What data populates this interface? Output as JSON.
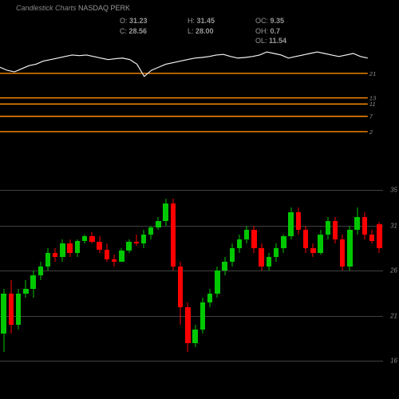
{
  "header": {
    "title_prefix": "Candlestick Charts",
    "symbol": "NASDAQ PERK",
    "stats": {
      "O": "31.23",
      "H": "31.45",
      "OC": "9.35",
      "C": "28.56",
      "L": "28.00",
      "OH": "0.7",
      "OL": "11.54"
    }
  },
  "colors": {
    "bg": "#000000",
    "orange_line": "#ff8c00",
    "indicator_line": "#f5f5f5",
    "grid_line": "#404040",
    "up_candle": "#00c800",
    "down_candle": "#ff0000",
    "text": "#999999"
  },
  "indicator_panel": {
    "ylim": [
      0,
      30
    ],
    "orange_levels": [
      21,
      13,
      11,
      7,
      2
    ],
    "line_data": [
      23,
      22,
      21.5,
      22.5,
      23.5,
      24,
      25,
      25.5,
      26,
      26.5,
      27,
      26.8,
      27,
      26.5,
      26,
      25.5,
      25.8,
      26,
      25.5,
      24,
      20,
      22,
      23,
      24,
      24.5,
      25,
      25.5,
      26,
      26.2,
      26.5,
      27,
      27.2,
      26.5,
      26,
      26.2,
      26.5,
      27,
      28,
      27.5,
      27,
      26,
      26.5,
      27,
      27.5,
      28,
      27.5,
      27,
      26.5,
      27,
      27.5,
      26.5,
      26
    ]
  },
  "price_panel": {
    "ylim": [
      14,
      37
    ],
    "grid_levels": [
      35,
      31,
      26,
      21,
      16
    ],
    "candles": [
      {
        "o": 19,
        "h": 24,
        "l": 17,
        "c": 23.5
      },
      {
        "o": 23.5,
        "h": 25,
        "l": 19,
        "c": 20
      },
      {
        "o": 20,
        "h": 24,
        "l": 19.5,
        "c": 23.5
      },
      {
        "o": 23.5,
        "h": 25,
        "l": 23,
        "c": 24
      },
      {
        "o": 24,
        "h": 26,
        "l": 23,
        "c": 25.5
      },
      {
        "o": 25.5,
        "h": 27,
        "l": 25,
        "c": 26.5
      },
      {
        "o": 26.5,
        "h": 28.5,
        "l": 26,
        "c": 28
      },
      {
        "o": 28,
        "h": 28.5,
        "l": 27,
        "c": 27.5
      },
      {
        "o": 27.5,
        "h": 29.5,
        "l": 27,
        "c": 29
      },
      {
        "o": 29,
        "h": 29.5,
        "l": 27.5,
        "c": 28
      },
      {
        "o": 28,
        "h": 29.5,
        "l": 27.5,
        "c": 29.3
      },
      {
        "o": 29.3,
        "h": 30,
        "l": 29,
        "c": 29.8
      },
      {
        "o": 29.8,
        "h": 30.3,
        "l": 29,
        "c": 29.2
      },
      {
        "o": 29.2,
        "h": 29.8,
        "l": 28,
        "c": 28.3
      },
      {
        "o": 28.3,
        "h": 29,
        "l": 27,
        "c": 27.3
      },
      {
        "o": 27.3,
        "h": 27.8,
        "l": 26.5,
        "c": 27
      },
      {
        "o": 27,
        "h": 28.5,
        "l": 27,
        "c": 28.2
      },
      {
        "o": 28.2,
        "h": 29.5,
        "l": 28,
        "c": 29.2
      },
      {
        "o": 29.2,
        "h": 30,
        "l": 28.8,
        "c": 29
      },
      {
        "o": 29,
        "h": 30.5,
        "l": 28.5,
        "c": 30
      },
      {
        "o": 30,
        "h": 31,
        "l": 29.5,
        "c": 30.8
      },
      {
        "o": 30.8,
        "h": 32,
        "l": 30.5,
        "c": 31.5
      },
      {
        "o": 31.5,
        "h": 34,
        "l": 31,
        "c": 33.5
      },
      {
        "o": 33.5,
        "h": 34,
        "l": 26,
        "c": 26.5
      },
      {
        "o": 26.5,
        "h": 27,
        "l": 20,
        "c": 22
      },
      {
        "o": 22,
        "h": 22.5,
        "l": 17,
        "c": 18
      },
      {
        "o": 18,
        "h": 20,
        "l": 17.5,
        "c": 19.5
      },
      {
        "o": 19.5,
        "h": 23,
        "l": 19,
        "c": 22.5
      },
      {
        "o": 22.5,
        "h": 24,
        "l": 22,
        "c": 23.5
      },
      {
        "o": 23.5,
        "h": 26.5,
        "l": 23,
        "c": 26
      },
      {
        "o": 26,
        "h": 27.5,
        "l": 25.5,
        "c": 27
      },
      {
        "o": 27,
        "h": 29,
        "l": 26.5,
        "c": 28.5
      },
      {
        "o": 28.5,
        "h": 30,
        "l": 28,
        "c": 29.5
      },
      {
        "o": 29.5,
        "h": 31,
        "l": 29,
        "c": 30.5
      },
      {
        "o": 30.5,
        "h": 31,
        "l": 28,
        "c": 28.5
      },
      {
        "o": 28.5,
        "h": 29,
        "l": 26,
        "c": 26.5
      },
      {
        "o": 26.5,
        "h": 28,
        "l": 26,
        "c": 27.5
      },
      {
        "o": 27.5,
        "h": 29,
        "l": 27,
        "c": 28.5
      },
      {
        "o": 28.5,
        "h": 30,
        "l": 28,
        "c": 29.8
      },
      {
        "o": 29.8,
        "h": 33,
        "l": 29.5,
        "c": 32.5
      },
      {
        "o": 32.5,
        "h": 33,
        "l": 30,
        "c": 30.5
      },
      {
        "o": 30.5,
        "h": 31,
        "l": 28,
        "c": 28.5
      },
      {
        "o": 28.5,
        "h": 29,
        "l": 27.5,
        "c": 28
      },
      {
        "o": 28,
        "h": 30.5,
        "l": 27.8,
        "c": 30
      },
      {
        "o": 30,
        "h": 32,
        "l": 29.5,
        "c": 31.5
      },
      {
        "o": 31.5,
        "h": 32,
        "l": 29,
        "c": 29.5
      },
      {
        "o": 29.5,
        "h": 30,
        "l": 26,
        "c": 26.5
      },
      {
        "o": 26.5,
        "h": 31,
        "l": 26,
        "c": 30.5
      },
      {
        "o": 30.5,
        "h": 33,
        "l": 30,
        "c": 32
      },
      {
        "o": 32,
        "h": 32.5,
        "l": 29.5,
        "c": 30
      },
      {
        "o": 30,
        "h": 30.5,
        "l": 29,
        "c": 29.3
      },
      {
        "o": 31.2,
        "h": 31.4,
        "l": 28,
        "c": 28.5
      }
    ]
  }
}
